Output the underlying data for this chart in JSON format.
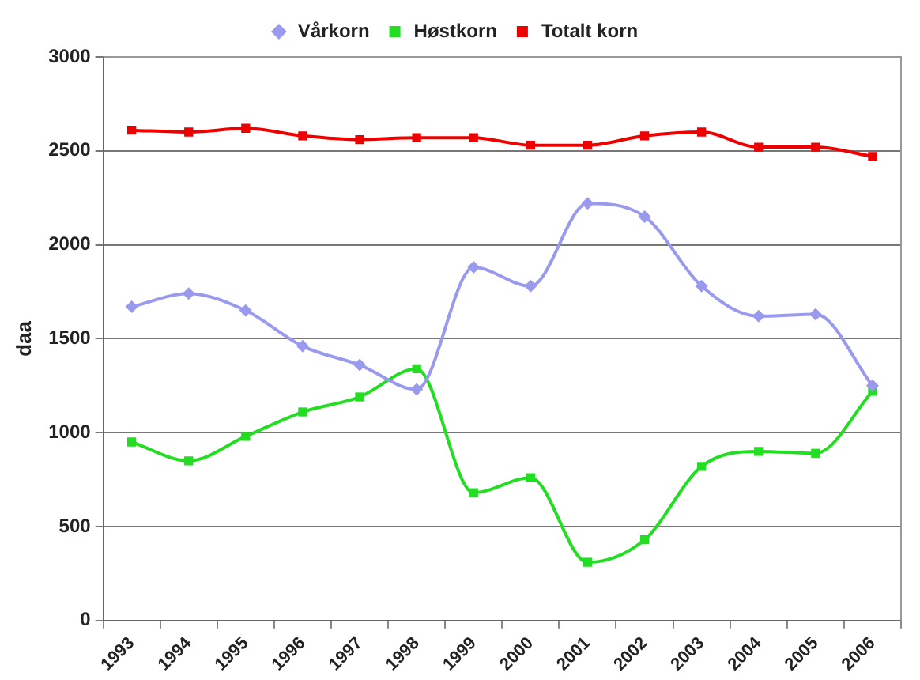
{
  "chart_data": {
    "type": "line",
    "ylabel": "daa",
    "categories": [
      "1993",
      "1994",
      "1995",
      "1996",
      "1997",
      "1998",
      "1999",
      "2000",
      "2001",
      "2002",
      "2003",
      "2004",
      "2005",
      "2006"
    ],
    "series": [
      {
        "name": "Vårkorn",
        "color": "#9999ee",
        "marker": "diamond",
        "values": [
          1670,
          1740,
          1650,
          1460,
          1360,
          1230,
          1880,
          1780,
          2220,
          2150,
          1780,
          1620,
          1630,
          1250
        ]
      },
      {
        "name": "Høstkorn",
        "color": "#22dd22",
        "marker": "square",
        "values": [
          950,
          850,
          980,
          1110,
          1190,
          1340,
          680,
          760,
          310,
          430,
          820,
          900,
          890,
          1220
        ]
      },
      {
        "name": "Totalt korn",
        "color": "#ee0000",
        "marker": "square",
        "values": [
          2610,
          2600,
          2620,
          2580,
          2560,
          2570,
          2570,
          2530,
          2530,
          2580,
          2600,
          2520,
          2520,
          2470
        ]
      }
    ],
    "ylim": [
      0,
      3000
    ],
    "yticks": [
      0,
      500,
      1000,
      1500,
      2000,
      2500,
      3000
    ],
    "grid": "y",
    "legend": "top",
    "line_style": "solid"
  }
}
